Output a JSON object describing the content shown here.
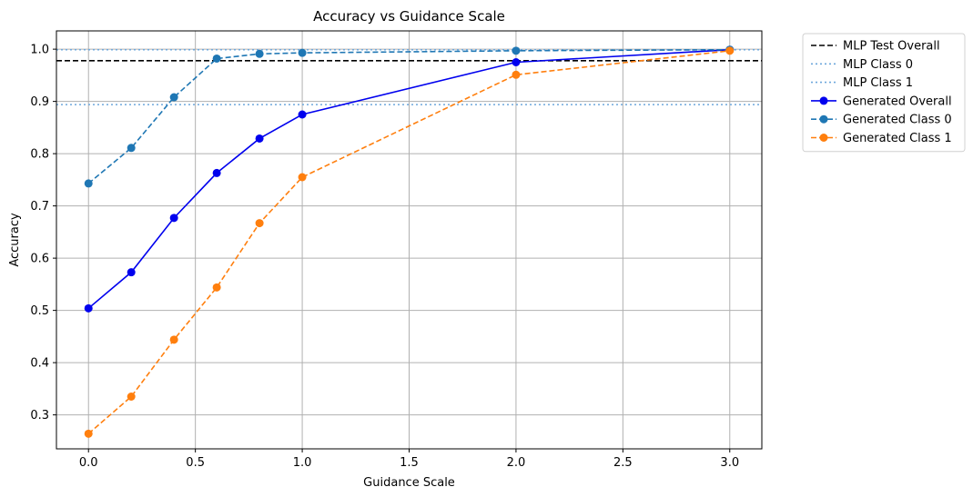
{
  "chart_data": {
    "type": "line",
    "title": "Accuracy vs Guidance Scale",
    "xlabel": "Guidance Scale",
    "ylabel": "Accuracy",
    "xlim": [
      -0.15,
      3.15
    ],
    "ylim": [
      0.235,
      1.035
    ],
    "xticks": [
      0.0,
      0.5,
      1.0,
      1.5,
      2.0,
      2.5,
      3.0
    ],
    "xtick_labels": [
      "0.0",
      "0.5",
      "1.0",
      "1.5",
      "2.0",
      "2.5",
      "3.0"
    ],
    "yticks": [
      0.3,
      0.4,
      0.5,
      0.6,
      0.7,
      0.8,
      0.9,
      1.0
    ],
    "ytick_labels": [
      "0.3",
      "0.4",
      "0.5",
      "0.6",
      "0.7",
      "0.8",
      "0.9",
      "1.0"
    ],
    "grid": true,
    "legend_position": "outside-upper-right",
    "hlines": [
      {
        "name": "MLP Test Overall",
        "y": 0.978,
        "color": "#000000",
        "style": "dashed"
      },
      {
        "name": "MLP Class 0",
        "y": 0.999,
        "color": "#6fa8dc",
        "style": "dotted"
      },
      {
        "name": "MLP Class 1",
        "y": 0.894,
        "color": "#6fa8dc",
        "style": "dotted"
      }
    ],
    "x": [
      0.0,
      0.2,
      0.4,
      0.6,
      0.8,
      1.0,
      2.0,
      3.0
    ],
    "series": [
      {
        "name": "Generated Overall",
        "color": "#0000ee",
        "style": "solid",
        "values": [
          0.504,
          0.573,
          0.677,
          0.763,
          0.829,
          0.875,
          0.975,
          0.999
        ]
      },
      {
        "name": "Generated Class 0",
        "color": "#1f77b4",
        "style": "dashed",
        "values": [
          0.743,
          0.811,
          0.908,
          0.982,
          0.991,
          0.993,
          0.997,
          0.999
        ]
      },
      {
        "name": "Generated Class 1",
        "color": "#ff7f0e",
        "style": "dashed",
        "values": [
          0.264,
          0.335,
          0.444,
          0.544,
          0.667,
          0.755,
          0.951,
          0.997
        ]
      }
    ]
  }
}
